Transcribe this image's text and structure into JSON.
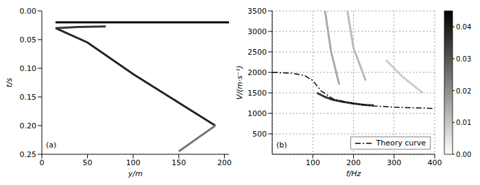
{
  "chart_data": [
    {
      "type": "line",
      "panel_label": "(a)",
      "x_label": "y/m",
      "y_label": "t/s",
      "xlim": [
        0,
        205
      ],
      "xticks": [
        0,
        50,
        100,
        150,
        200
      ],
      "ylim": [
        0,
        0.25
      ],
      "yticks": [
        {
          "value": 0,
          "label": "0.00"
        },
        {
          "value": 0.05,
          "label": "0.05"
        },
        {
          "value": 0.1,
          "label": "0.10"
        },
        {
          "value": 0.15,
          "label": "0.15"
        },
        {
          "value": 0.2,
          "label": "0.20"
        },
        {
          "value": 0.25,
          "label": "0.25"
        }
      ],
      "grid": false,
      "series": [
        {
          "color": "#000000",
          "line_style": "solid",
          "x": [
            15,
            205
          ],
          "values": [
            0.02,
            0.02
          ]
        },
        {
          "color": "#222222",
          "line_style": "solid",
          "x": [
            15,
            50,
            100,
            150,
            190
          ],
          "values": [
            0.03,
            0.055,
            0.11,
            0.16,
            0.2
          ]
        },
        {
          "color": "#777777",
          "line_style": "solid",
          "x": [
            190,
            150
          ],
          "values": [
            0.2,
            0.245
          ]
        },
        {
          "color": "#333333",
          "line_style": "solid",
          "x": [
            15,
            40,
            70
          ],
          "values": [
            0.03,
            0.028,
            0.027
          ]
        }
      ]
    },
    {
      "type": "line",
      "panel_label": "(b)",
      "x_label": "f/Hz",
      "y_label": "V/(m·s⁻¹)",
      "xlim": [
        0,
        400
      ],
      "xticks": [
        100,
        200,
        300,
        400
      ],
      "ylim": [
        0,
        3500
      ],
      "yticks": [
        500,
        1000,
        1500,
        2000,
        2500,
        3000,
        3500
      ],
      "grid": true,
      "legend": "lower right",
      "series": [
        {
          "color": "#aaaaaa",
          "line_style": "solid",
          "x": [
            130,
            145,
            165
          ],
          "values": [
            3500,
            2500,
            1700
          ]
        },
        {
          "color": "#bbbbbb",
          "line_style": "solid",
          "x": [
            185,
            200,
            230
          ],
          "values": [
            3500,
            2600,
            1800
          ]
        },
        {
          "color": "#cccccc",
          "line_style": "solid",
          "x": [
            280,
            320,
            370
          ],
          "values": [
            2300,
            1900,
            1500
          ]
        },
        {
          "color": "#333333",
          "line_style": "solid",
          "x": [
            110,
            130,
            150,
            175,
            200,
            225,
            250
          ],
          "values": [
            1500,
            1400,
            1330,
            1280,
            1240,
            1210,
            1190
          ]
        },
        {
          "name": "Theory curve",
          "color": "#000000",
          "line_style": "dashdot",
          "x": [
            0,
            50,
            80,
            100,
            120,
            150,
            200,
            250,
            300,
            400
          ],
          "values": [
            2000,
            1980,
            1920,
            1800,
            1550,
            1350,
            1230,
            1180,
            1150,
            1120
          ]
        }
      ],
      "colorbar": {
        "range": [
          0,
          0.045
        ],
        "ticks": [
          {
            "value": 0,
            "label": "0.00"
          },
          {
            "value": 0.01,
            "label": "0.01"
          },
          {
            "value": 0.02,
            "label": "0.02"
          },
          {
            "value": 0.03,
            "label": "0.03"
          },
          {
            "value": 0.04,
            "label": "0.04"
          }
        ]
      }
    }
  ]
}
